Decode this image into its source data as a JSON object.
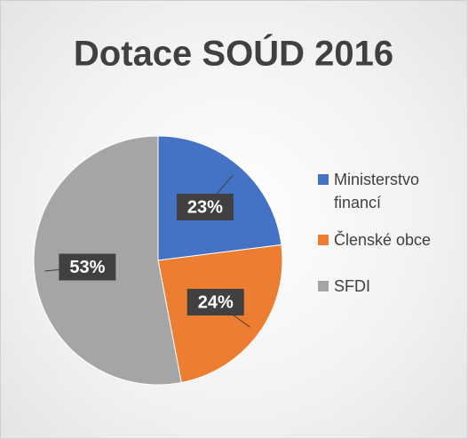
{
  "chart_data": {
    "type": "pie",
    "title": "Dotace SOÚD 2016",
    "categories": [
      "Ministerstvo financí",
      "Členské obce",
      "SFDI"
    ],
    "values": [
      23,
      24,
      53
    ],
    "value_labels": [
      "23%",
      "24%",
      "53%"
    ],
    "colors": [
      "#4472c4",
      "#ed7d31",
      "#a5a5a5"
    ],
    "legend": "right"
  }
}
